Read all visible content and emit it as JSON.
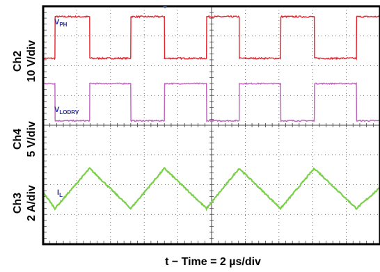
{
  "chart_data": {
    "type": "line",
    "x_units": "div",
    "xlim": [
      0,
      10
    ],
    "ylim": [
      0,
      8
    ],
    "xlabel": "t − Time = 2 µs/div",
    "colors": {
      "VPH": "#e8202a",
      "VLODRV": "#c05fc0",
      "IL": "#7bd04a",
      "label": "#2a2a9a",
      "grid": "#444444"
    },
    "channels": [
      {
        "name": "VPH",
        "label_main": "V",
        "label_sub": "PH",
        "axis_label_line1": "Ch2",
        "axis_label_line2": "10 V/div",
        "color": "#e8202a",
        "low": 6.25,
        "high": 7.65,
        "transitions": [
          {
            "t": 0.35,
            "dir": "up"
          },
          {
            "t": 1.38,
            "dir": "down"
          },
          {
            "t": 2.6,
            "dir": "up"
          },
          {
            "t": 3.6,
            "dir": "down"
          },
          {
            "t": 4.85,
            "dir": "up"
          },
          {
            "t": 5.82,
            "dir": "down"
          },
          {
            "t": 7.05,
            "dir": "up"
          },
          {
            "t": 8.05,
            "dir": "down"
          },
          {
            "t": 9.3,
            "dir": "up"
          }
        ]
      },
      {
        "name": "VLODRV",
        "label_main": "V",
        "label_sub": "LODRV",
        "axis_label_line1": "Ch4",
        "axis_label_line2": "5 V/div",
        "color": "#c05fc0",
        "low": 4.15,
        "high": 5.4,
        "transitions": [
          {
            "t": 0.0,
            "dir": "up"
          },
          {
            "t": 0.35,
            "dir": "down"
          },
          {
            "t": 1.38,
            "dir": "up"
          },
          {
            "t": 2.6,
            "dir": "down"
          },
          {
            "t": 3.6,
            "dir": "up"
          },
          {
            "t": 4.85,
            "dir": "down"
          },
          {
            "t": 5.82,
            "dir": "up"
          },
          {
            "t": 7.05,
            "dir": "down"
          },
          {
            "t": 8.05,
            "dir": "up"
          },
          {
            "t": 9.3,
            "dir": "down"
          }
        ]
      },
      {
        "name": "IL",
        "label_main": "I",
        "label_sub": "L",
        "axis_label_line1": "Ch3",
        "axis_label_line2": "2 A/div",
        "color": "#7bd04a",
        "points": [
          [
            0.0,
            1.75
          ],
          [
            0.35,
            1.2
          ],
          [
            1.38,
            2.55
          ],
          [
            2.6,
            1.2
          ],
          [
            3.6,
            2.55
          ],
          [
            4.85,
            1.2
          ],
          [
            5.82,
            2.55
          ],
          [
            7.05,
            1.2
          ],
          [
            8.05,
            2.55
          ],
          [
            9.3,
            1.2
          ],
          [
            10.0,
            1.9
          ]
        ]
      }
    ]
  }
}
